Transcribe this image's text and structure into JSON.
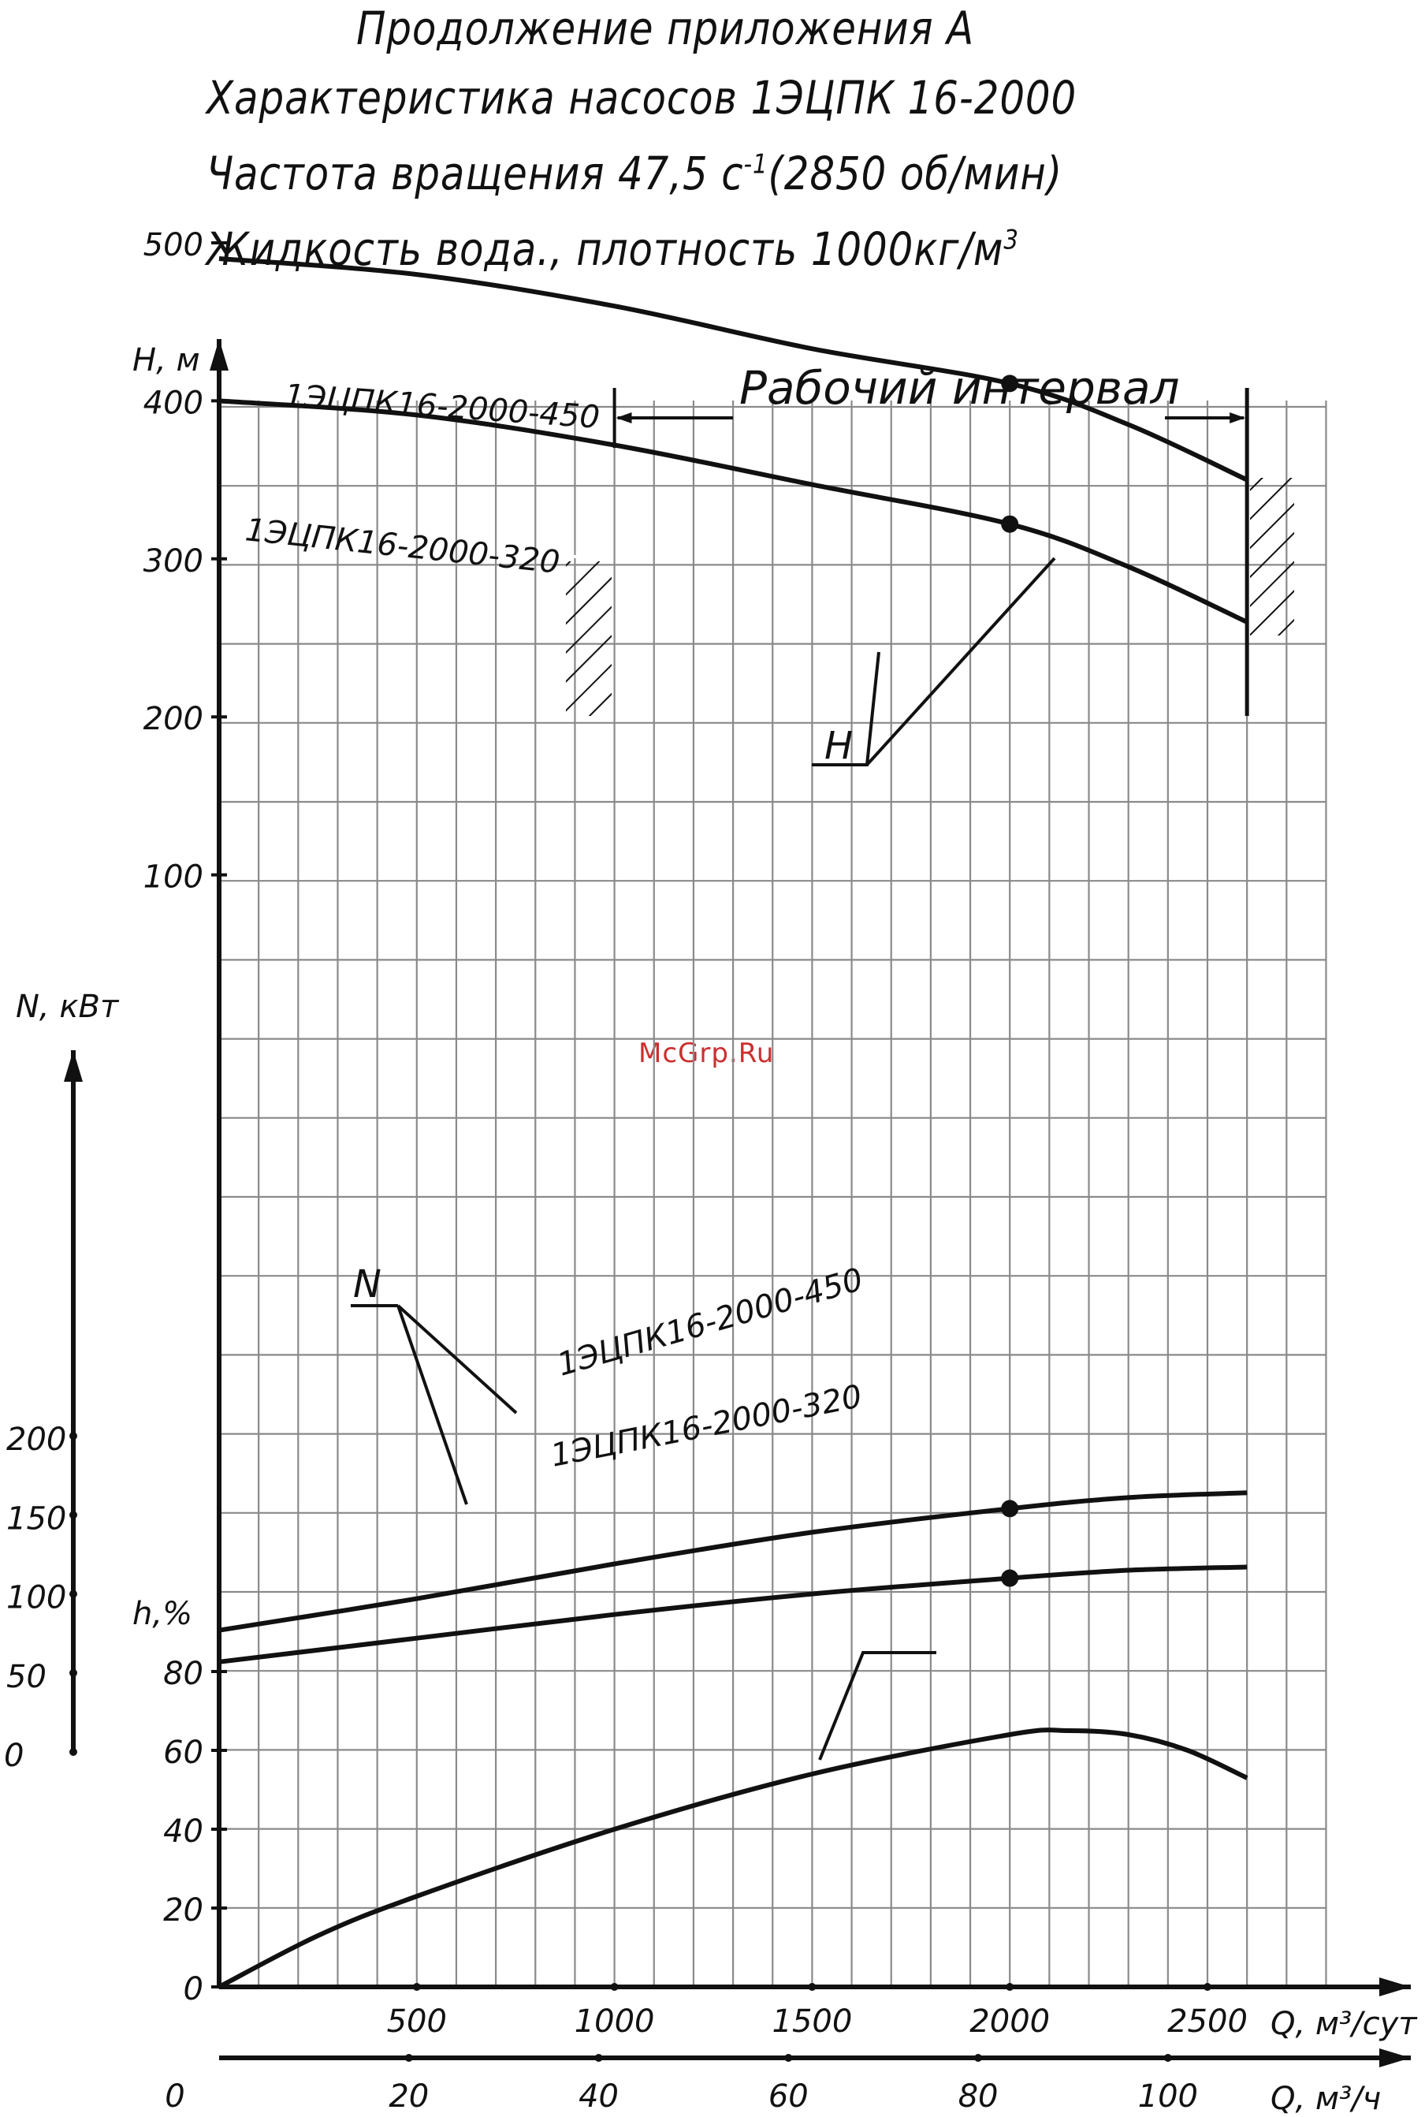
{
  "header": {
    "line1": "Продолжение приложения А",
    "line2": "Характеристика насосов 1ЭЦПК 16-2000",
    "line3a": "Частота вращения 47,5 с",
    "line3sup": "-1",
    "line3b": "(2850 об/мин)",
    "line4": "Жидкость вода., плотность 1000кг/м",
    "line4sup": "3"
  },
  "watermark": "McGrp.Ru",
  "chart_data": {
    "type": "line",
    "x_axis": {
      "label": "Q, м³/сут",
      "ticks": [
        500,
        1000,
        1500,
        2000,
        2500
      ],
      "range": [
        0,
        2800
      ]
    },
    "x_axis_secondary": {
      "label": "Q, м³/ч",
      "ticks": [
        0,
        20,
        40,
        60,
        80,
        100
      ]
    },
    "head_axis": {
      "label": "H, м",
      "ticks": [
        500,
        400,
        300,
        200,
        100
      ]
    },
    "power_axis": {
      "label": "N, кВт",
      "ticks": [
        200,
        150,
        100,
        50,
        0
      ]
    },
    "eff_axis": {
      "label": "h,%",
      "ticks": [
        80,
        60,
        40,
        20,
        0
      ]
    },
    "working_range": {
      "label": "Рабочий интервал",
      "from": 1000,
      "to": 2600
    },
    "head_series": [
      {
        "name": "1ЭЦПК16-2000-450",
        "points": [
          [
            0,
            490
          ],
          [
            500,
            480
          ],
          [
            1000,
            460
          ],
          [
            1500,
            433
          ],
          [
            2000,
            411
          ],
          [
            2300,
            385
          ],
          [
            2600,
            350
          ]
        ],
        "marker": [
          2000,
          411
        ]
      },
      {
        "name": "1ЭЦПК16-2000-320",
        "points": [
          [
            0,
            400
          ],
          [
            500,
            391
          ],
          [
            1000,
            372
          ],
          [
            1500,
            347
          ],
          [
            2000,
            322
          ],
          [
            2300,
            295
          ],
          [
            2600,
            260
          ]
        ],
        "marker": [
          2000,
          322
        ]
      }
    ],
    "power_series": [
      {
        "name": "1ЭЦПК16-2000-450",
        "points": [
          [
            0,
            77
          ],
          [
            500,
            97
          ],
          [
            1000,
            119
          ],
          [
            1500,
            139
          ],
          [
            2000,
            154
          ],
          [
            2300,
            161
          ],
          [
            2600,
            164
          ]
        ],
        "marker": [
          2000,
          154
        ]
      },
      {
        "name": "1ЭЦПК16-2000-320",
        "points": [
          [
            0,
            57
          ],
          [
            500,
            72
          ],
          [
            1000,
            87
          ],
          [
            1500,
            100
          ],
          [
            2000,
            110
          ],
          [
            2300,
            115
          ],
          [
            2600,
            117
          ]
        ],
        "marker": [
          2000,
          110
        ]
      }
    ],
    "eff_series": {
      "points": [
        [
          0,
          0
        ],
        [
          250,
          13
        ],
        [
          500,
          23
        ],
        [
          1000,
          40
        ],
        [
          1500,
          54
        ],
        [
          2000,
          64
        ],
        [
          2150,
          65
        ],
        [
          2300,
          64
        ],
        [
          2450,
          60
        ],
        [
          2600,
          53
        ]
      ]
    },
    "callouts": {
      "head": "H",
      "power": "N"
    },
    "grid": true
  }
}
